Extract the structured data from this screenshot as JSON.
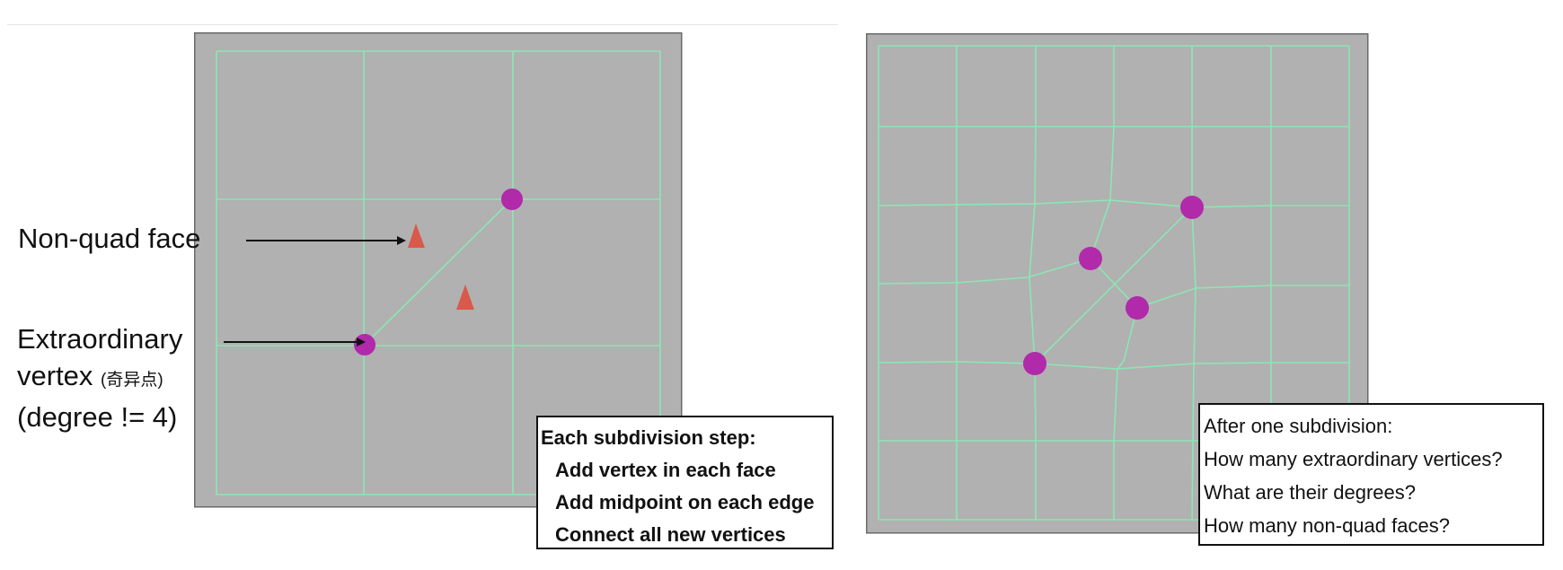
{
  "left_panel": {
    "annotations": {
      "non_quad_face": "Non-quad face",
      "extraordinary_line1": "Extraordinary",
      "extraordinary_line2_main": "vertex",
      "extraordinary_line2_cn": "(奇异点)",
      "extraordinary_line3": "(degree != 4)"
    },
    "info_box": {
      "title": "Each subdivision step:",
      "steps": [
        "Add vertex in each face",
        "Add midpoint on each edge",
        "Connect all new vertices"
      ]
    }
  },
  "right_panel": {
    "info_box": {
      "lines": [
        "After one subdivision:",
        "How many extraordinary vertices?",
        "What are their degrees?",
        "How many non-quad faces?"
      ]
    }
  },
  "colors": {
    "mesh_background": "#b1b1b1",
    "mesh_edges": "#8ce6b4",
    "extraordinary_vertex": "#b02aa9",
    "non_quad_marker": "#d9594a"
  }
}
